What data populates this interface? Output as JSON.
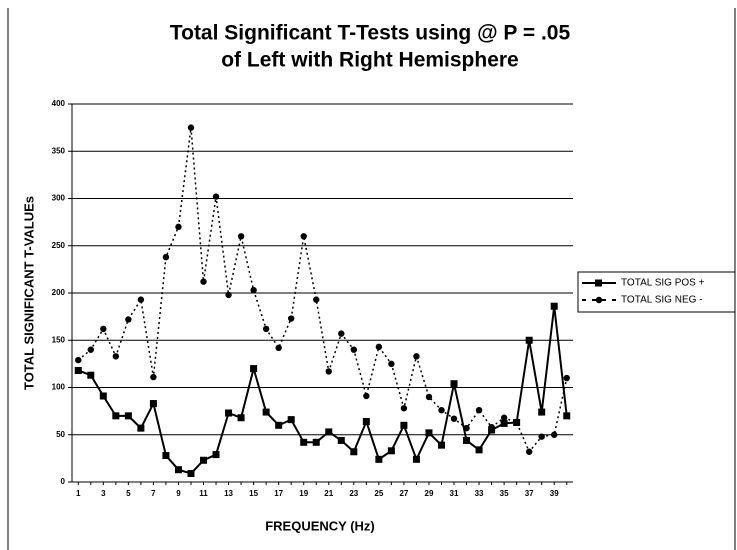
{
  "chart_data": {
    "type": "line",
    "title": [
      "Total Significant T-Tests using @ P = .05",
      "of Left with Right Hemisphere"
    ],
    "x_label": "FREQUENCY (Hz)",
    "y_label": "TOTAL SIGNIFICANT T-VALUEs",
    "categories": [
      "1",
      null,
      "3",
      null,
      "5",
      null,
      "7",
      null,
      "9",
      null,
      "11",
      null,
      "13",
      null,
      "15",
      null,
      "17",
      null,
      "19",
      null,
      "21",
      null,
      "23",
      null,
      "25",
      null,
      "27",
      null,
      "29",
      null,
      "31",
      null,
      "33",
      null,
      "35",
      null,
      "37",
      null,
      "39",
      null
    ],
    "series": [
      {
        "name": "TOTAL SIG POS +",
        "color": "#000000",
        "style": "solid",
        "marker": "square",
        "values": [
          118,
          113,
          91,
          70,
          70,
          57,
          83,
          28,
          13,
          9,
          23,
          29,
          73,
          68,
          120,
          74,
          60,
          66,
          42,
          42,
          53,
          44,
          32,
          64,
          24,
          33,
          60,
          24,
          52,
          39,
          104,
          44,
          34,
          55,
          62,
          63,
          150,
          74,
          186,
          70
        ]
      },
      {
        "name": "TOTAL SIG NEG -",
        "color": "#000000",
        "style": "dotted",
        "marker": "circle",
        "values": [
          129,
          140,
          162,
          133,
          172,
          193,
          111,
          238,
          270,
          375,
          212,
          302,
          198,
          260,
          203,
          162,
          142,
          173,
          260,
          193,
          117,
          157,
          140,
          91,
          143,
          125,
          78,
          133,
          90,
          76,
          67,
          57,
          76,
          58,
          68,
          63,
          32,
          48,
          50,
          110
        ]
      }
    ],
    "ylim": [
      0,
      400
    ],
    "yticks": [
      0,
      50,
      100,
      150,
      200,
      250,
      300,
      350,
      400
    ],
    "grid": true,
    "legend": "right"
  }
}
